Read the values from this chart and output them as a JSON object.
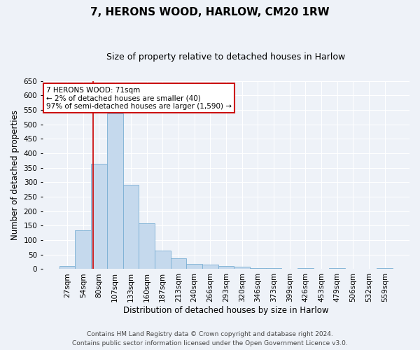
{
  "title": "7, HERONS WOOD, HARLOW, CM20 1RW",
  "subtitle": "Size of property relative to detached houses in Harlow",
  "xlabel": "Distribution of detached houses by size in Harlow",
  "ylabel": "Number of detached properties",
  "categories": [
    "27sqm",
    "54sqm",
    "80sqm",
    "107sqm",
    "133sqm",
    "160sqm",
    "187sqm",
    "213sqm",
    "240sqm",
    "266sqm",
    "293sqm",
    "320sqm",
    "346sqm",
    "373sqm",
    "399sqm",
    "426sqm",
    "453sqm",
    "479sqm",
    "506sqm",
    "532sqm",
    "559sqm"
  ],
  "values": [
    10,
    135,
    363,
    537,
    290,
    158,
    65,
    38,
    17,
    15,
    10,
    8,
    4,
    4,
    0,
    4,
    0,
    3,
    0,
    0,
    3
  ],
  "bar_color": "#c5d9ed",
  "bar_edge_color": "#7aafd4",
  "vline_x": 1.62,
  "vline_color": "#cc0000",
  "annotation_text": "7 HERONS WOOD: 71sqm\n← 2% of detached houses are smaller (40)\n97% of semi-detached houses are larger (1,590) →",
  "annotation_box_color": "#ffffff",
  "annotation_box_edge_color": "#cc0000",
  "ylim": [
    0,
    650
  ],
  "yticks": [
    0,
    50,
    100,
    150,
    200,
    250,
    300,
    350,
    400,
    450,
    500,
    550,
    600,
    650
  ],
  "footnote": "Contains HM Land Registry data © Crown copyright and database right 2024.\nContains public sector information licensed under the Open Government Licence v3.0.",
  "background_color": "#eef2f8",
  "plot_bg_color": "#eef2f8",
  "grid_color": "#ffffff",
  "title_fontsize": 11,
  "subtitle_fontsize": 9,
  "xlabel_fontsize": 8.5,
  "ylabel_fontsize": 8.5,
  "tick_fontsize": 7.5,
  "annotation_fontsize": 7.5,
  "footnote_fontsize": 6.5
}
